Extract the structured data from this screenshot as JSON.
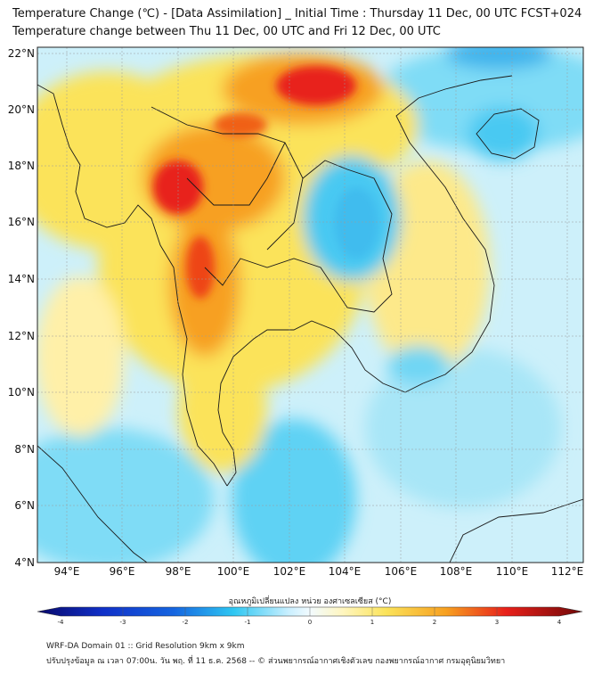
{
  "header": {
    "title_line1": "Temperature Change (℃) - [Data Assimilation] _ Initial Time : Thursday 11 Dec, 00 UTC FCST+024",
    "title_line2": "Temperature change between Thu 11 Dec, 00 UTC and Fri 12 Dec, 00 UTC"
  },
  "map": {
    "lon_ticks": [
      "94°E",
      "96°E",
      "98°E",
      "100°E",
      "102°E",
      "104°E",
      "106°E",
      "108°E",
      "110°E",
      "112°E"
    ],
    "lat_ticks": [
      "22°N",
      "20°N",
      "18°N",
      "16°N",
      "14°N",
      "12°N",
      "10°N",
      "8°N",
      "6°N",
      "4°N"
    ]
  },
  "colorbar": {
    "label": "อุณหภูมิเปลี่ยนแปลง หน่วย องศาเซลเซียส (°C)",
    "ticks": [
      "-4",
      "-3",
      "-2",
      "-1",
      "0",
      "1",
      "2",
      "3",
      "4"
    ],
    "colors": {
      "cold_end": "#08086a",
      "blue": "#1565e0",
      "cyan": "#2ec7f2",
      "pale": "#f2fbff",
      "yellow": "#fbe35a",
      "orange": "#f7a020",
      "red": "#e8201a",
      "hot_end": "#700808"
    }
  },
  "footer": {
    "line1": "WRF-DA Domain 01 :: Grid Resolution 9km x 9km",
    "line2": "ปรับปรุงข้อมูล ณ เวลา 07:00น. วัน พฤ. ที่ 11 ธ.ค. 2568 -- © ส่วนพยากรณ์อากาศเชิงตัวเลข กองพยากรณ์อากาศ กรมอุตุนิยมวิทยา"
  }
}
